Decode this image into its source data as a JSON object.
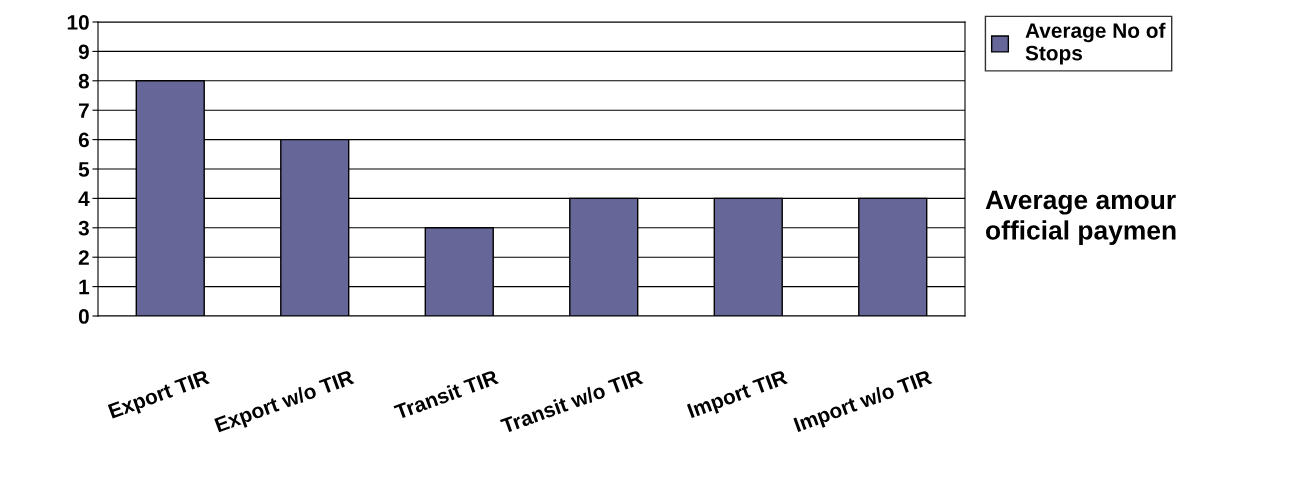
{
  "chart_data": {
    "type": "bar",
    "categories": [
      "Export TIR",
      "Export w/o TIR",
      "Transit TIR",
      "Transit w/o TIR",
      "Import TIR",
      "Import w/o TIR"
    ],
    "series": [
      {
        "name": "Average No of Stops",
        "color": "#666699",
        "values": [
          8,
          6,
          3,
          4,
          4,
          4
        ]
      }
    ],
    "ylim": [
      0,
      10
    ],
    "yticks": [
      0,
      1,
      2,
      3,
      4,
      5,
      6,
      7,
      8,
      9,
      10
    ],
    "grid": "y",
    "legend": "top right",
    "annotations": [
      "Average amour\nofficial paymen"
    ]
  }
}
